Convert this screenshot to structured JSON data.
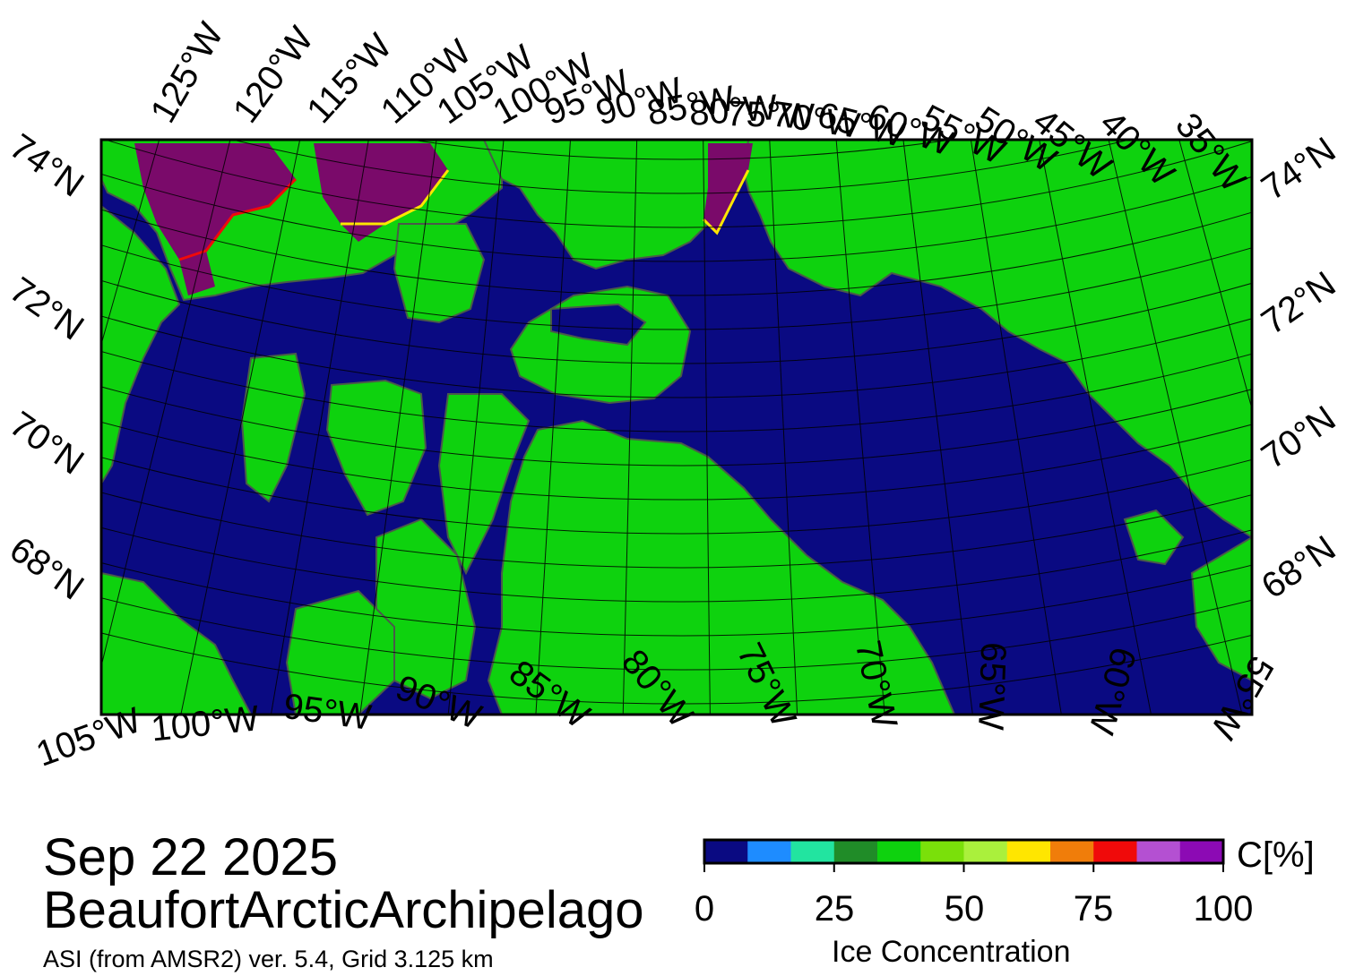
{
  "map": {
    "date": "Sep 22 2025",
    "region": "BeaufortArcticArchipelago",
    "product": "ASI (from AMSR2) ver. 5.4,  Grid 3.125 km",
    "top_lon_labels": [
      "125°W",
      "120°W",
      "115°W",
      "110°W",
      "105°W",
      "100°W",
      "95°W",
      "90°W",
      "85°W",
      "80°W",
      "75°W",
      "70°W",
      "65°W",
      "60°W",
      "55°W",
      "50°W",
      "45°W",
      "40°W",
      "35°W"
    ],
    "bottom_lon_labels": [
      "105°W",
      "100°W",
      "95°W",
      "90°W",
      "85°W",
      "80°W",
      "75°W",
      "70°W",
      "65°W",
      "60°W",
      "55°W"
    ],
    "left_lat_labels": [
      "74°N",
      "72°N",
      "70°N",
      "68°N"
    ],
    "right_lat_labels": [
      "74°N",
      "72°N",
      "70°N",
      "68°N"
    ],
    "colors": {
      "ocean": "#0a0a82",
      "land": "#0ed20e",
      "coast": "#4a5a4a",
      "grid": "#000000",
      "high_ice": "#7a0a6a"
    },
    "legend": {
      "unit": "C[%]",
      "title": "Ice Concentration",
      "ticks": [
        "0",
        "25",
        "50",
        "75",
        "100"
      ],
      "colors": [
        "#0a0a82",
        "#1e8cff",
        "#22e4a0",
        "#208c28",
        "#0ed20e",
        "#7ae00a",
        "#aaf03c",
        "#ffe600",
        "#f07d0a",
        "#f00a0a",
        "#b450d2",
        "#8c0ab4"
      ]
    }
  }
}
